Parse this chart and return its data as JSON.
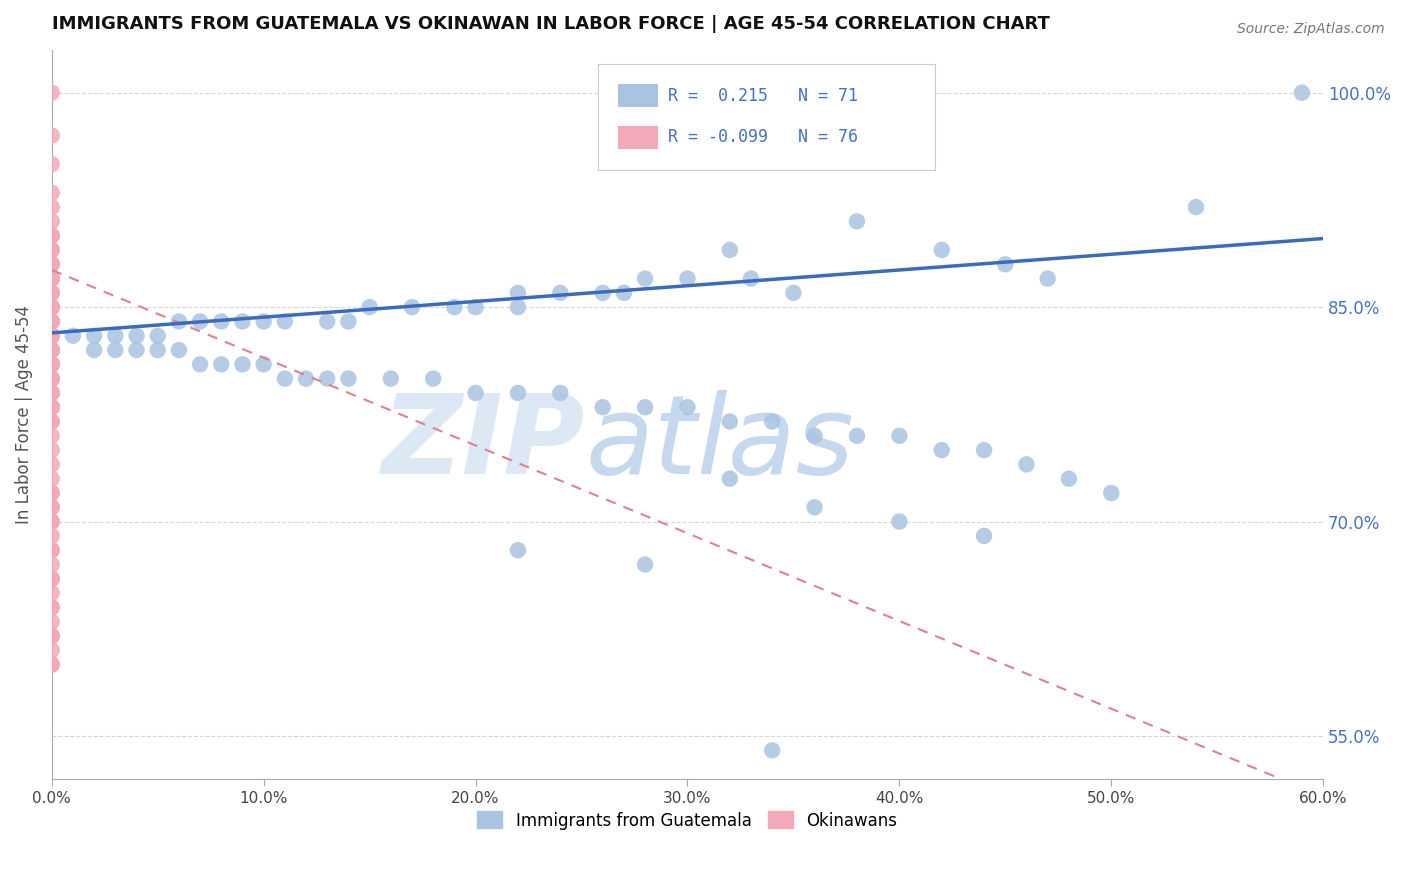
{
  "title": "IMMIGRANTS FROM GUATEMALA VS OKINAWAN IN LABOR FORCE | AGE 45-54 CORRELATION CHART",
  "source_text": "Source: ZipAtlas.com",
  "ylabel": "In Labor Force | Age 45-54",
  "xlim": [
    0.0,
    0.6
  ],
  "ylim": [
    0.52,
    1.03
  ],
  "xtick_labels": [
    "0.0%",
    "10.0%",
    "20.0%",
    "30.0%",
    "40.0%",
    "50.0%",
    "60.0%"
  ],
  "xtick_vals": [
    0.0,
    0.1,
    0.2,
    0.3,
    0.4,
    0.5,
    0.6
  ],
  "ytick_labels": [
    "55.0%",
    "70.0%",
    "85.0%",
    "100.0%"
  ],
  "ytick_vals": [
    0.55,
    0.7,
    0.85,
    1.0
  ],
  "R_blue": 0.215,
  "N_blue": 71,
  "R_pink": -0.099,
  "N_pink": 76,
  "blue_color": "#a8c4e0",
  "blue_line_color": "#3a6bbf",
  "pink_color": "#f4a8b8",
  "pink_line_color": "#e08090",
  "right_axis_color": "#4472c4",
  "legend_R_color": "#4472c4",
  "blue_trend_x": [
    0.0,
    0.6
  ],
  "blue_trend_y": [
    0.832,
    0.898
  ],
  "pink_trend_x": [
    0.0,
    0.58
  ],
  "pink_trend_y": [
    0.876,
    0.52
  ],
  "blue_x": [
    0.59,
    0.54,
    0.38,
    0.32,
    0.42,
    0.45,
    0.47,
    0.3,
    0.33,
    0.28,
    0.26,
    0.35,
    0.27,
    0.22,
    0.24,
    0.22,
    0.2,
    0.19,
    0.17,
    0.15,
    0.14,
    0.13,
    0.11,
    0.1,
    0.09,
    0.08,
    0.07,
    0.06,
    0.05,
    0.04,
    0.03,
    0.02,
    0.01,
    0.02,
    0.03,
    0.04,
    0.05,
    0.06,
    0.07,
    0.08,
    0.09,
    0.1,
    0.11,
    0.12,
    0.13,
    0.14,
    0.16,
    0.18,
    0.2,
    0.22,
    0.24,
    0.26,
    0.28,
    0.3,
    0.32,
    0.34,
    0.36,
    0.38,
    0.4,
    0.42,
    0.44,
    0.46,
    0.48,
    0.5,
    0.32,
    0.36,
    0.4,
    0.44,
    0.22,
    0.28,
    0.34
  ],
  "blue_y": [
    1.0,
    0.92,
    0.91,
    0.89,
    0.89,
    0.88,
    0.87,
    0.87,
    0.87,
    0.87,
    0.86,
    0.86,
    0.86,
    0.86,
    0.86,
    0.85,
    0.85,
    0.85,
    0.85,
    0.85,
    0.84,
    0.84,
    0.84,
    0.84,
    0.84,
    0.84,
    0.84,
    0.84,
    0.83,
    0.83,
    0.83,
    0.83,
    0.83,
    0.82,
    0.82,
    0.82,
    0.82,
    0.82,
    0.81,
    0.81,
    0.81,
    0.81,
    0.8,
    0.8,
    0.8,
    0.8,
    0.8,
    0.8,
    0.79,
    0.79,
    0.79,
    0.78,
    0.78,
    0.78,
    0.77,
    0.77,
    0.76,
    0.76,
    0.76,
    0.75,
    0.75,
    0.74,
    0.73,
    0.72,
    0.73,
    0.71,
    0.7,
    0.69,
    0.68,
    0.67,
    0.54
  ],
  "pink_x": [
    0.0,
    0.0,
    0.0,
    0.0,
    0.0,
    0.0,
    0.0,
    0.0,
    0.0,
    0.0,
    0.0,
    0.0,
    0.0,
    0.0,
    0.0,
    0.0,
    0.0,
    0.0,
    0.0,
    0.0,
    0.0,
    0.0,
    0.0,
    0.0,
    0.0,
    0.0,
    0.0,
    0.0,
    0.0,
    0.0,
    0.0,
    0.0,
    0.0,
    0.0,
    0.0,
    0.0,
    0.0,
    0.0,
    0.0,
    0.0,
    0.0,
    0.0,
    0.0,
    0.0,
    0.0,
    0.0,
    0.0,
    0.0,
    0.0,
    0.0,
    0.0,
    0.0,
    0.0,
    0.0,
    0.0,
    0.0,
    0.0,
    0.0,
    0.0,
    0.0,
    0.0,
    0.0,
    0.0,
    0.0,
    0.0,
    0.0,
    0.0,
    0.0,
    0.0,
    0.0,
    0.0,
    0.0,
    0.0,
    0.0,
    0.0,
    0.0
  ],
  "pink_y": [
    1.0,
    0.97,
    0.95,
    0.93,
    0.92,
    0.91,
    0.9,
    0.9,
    0.89,
    0.89,
    0.88,
    0.88,
    0.88,
    0.87,
    0.87,
    0.87,
    0.86,
    0.86,
    0.86,
    0.85,
    0.85,
    0.85,
    0.85,
    0.84,
    0.84,
    0.84,
    0.84,
    0.83,
    0.83,
    0.83,
    0.83,
    0.82,
    0.82,
    0.82,
    0.82,
    0.81,
    0.81,
    0.81,
    0.81,
    0.8,
    0.8,
    0.8,
    0.8,
    0.79,
    0.79,
    0.79,
    0.78,
    0.78,
    0.78,
    0.77,
    0.77,
    0.76,
    0.75,
    0.74,
    0.73,
    0.72,
    0.71,
    0.7,
    0.69,
    0.68,
    0.67,
    0.66,
    0.65,
    0.64,
    0.63,
    0.62,
    0.72,
    0.71,
    0.7,
    0.68,
    0.66,
    0.64,
    0.62,
    0.61,
    0.6,
    0.6
  ]
}
